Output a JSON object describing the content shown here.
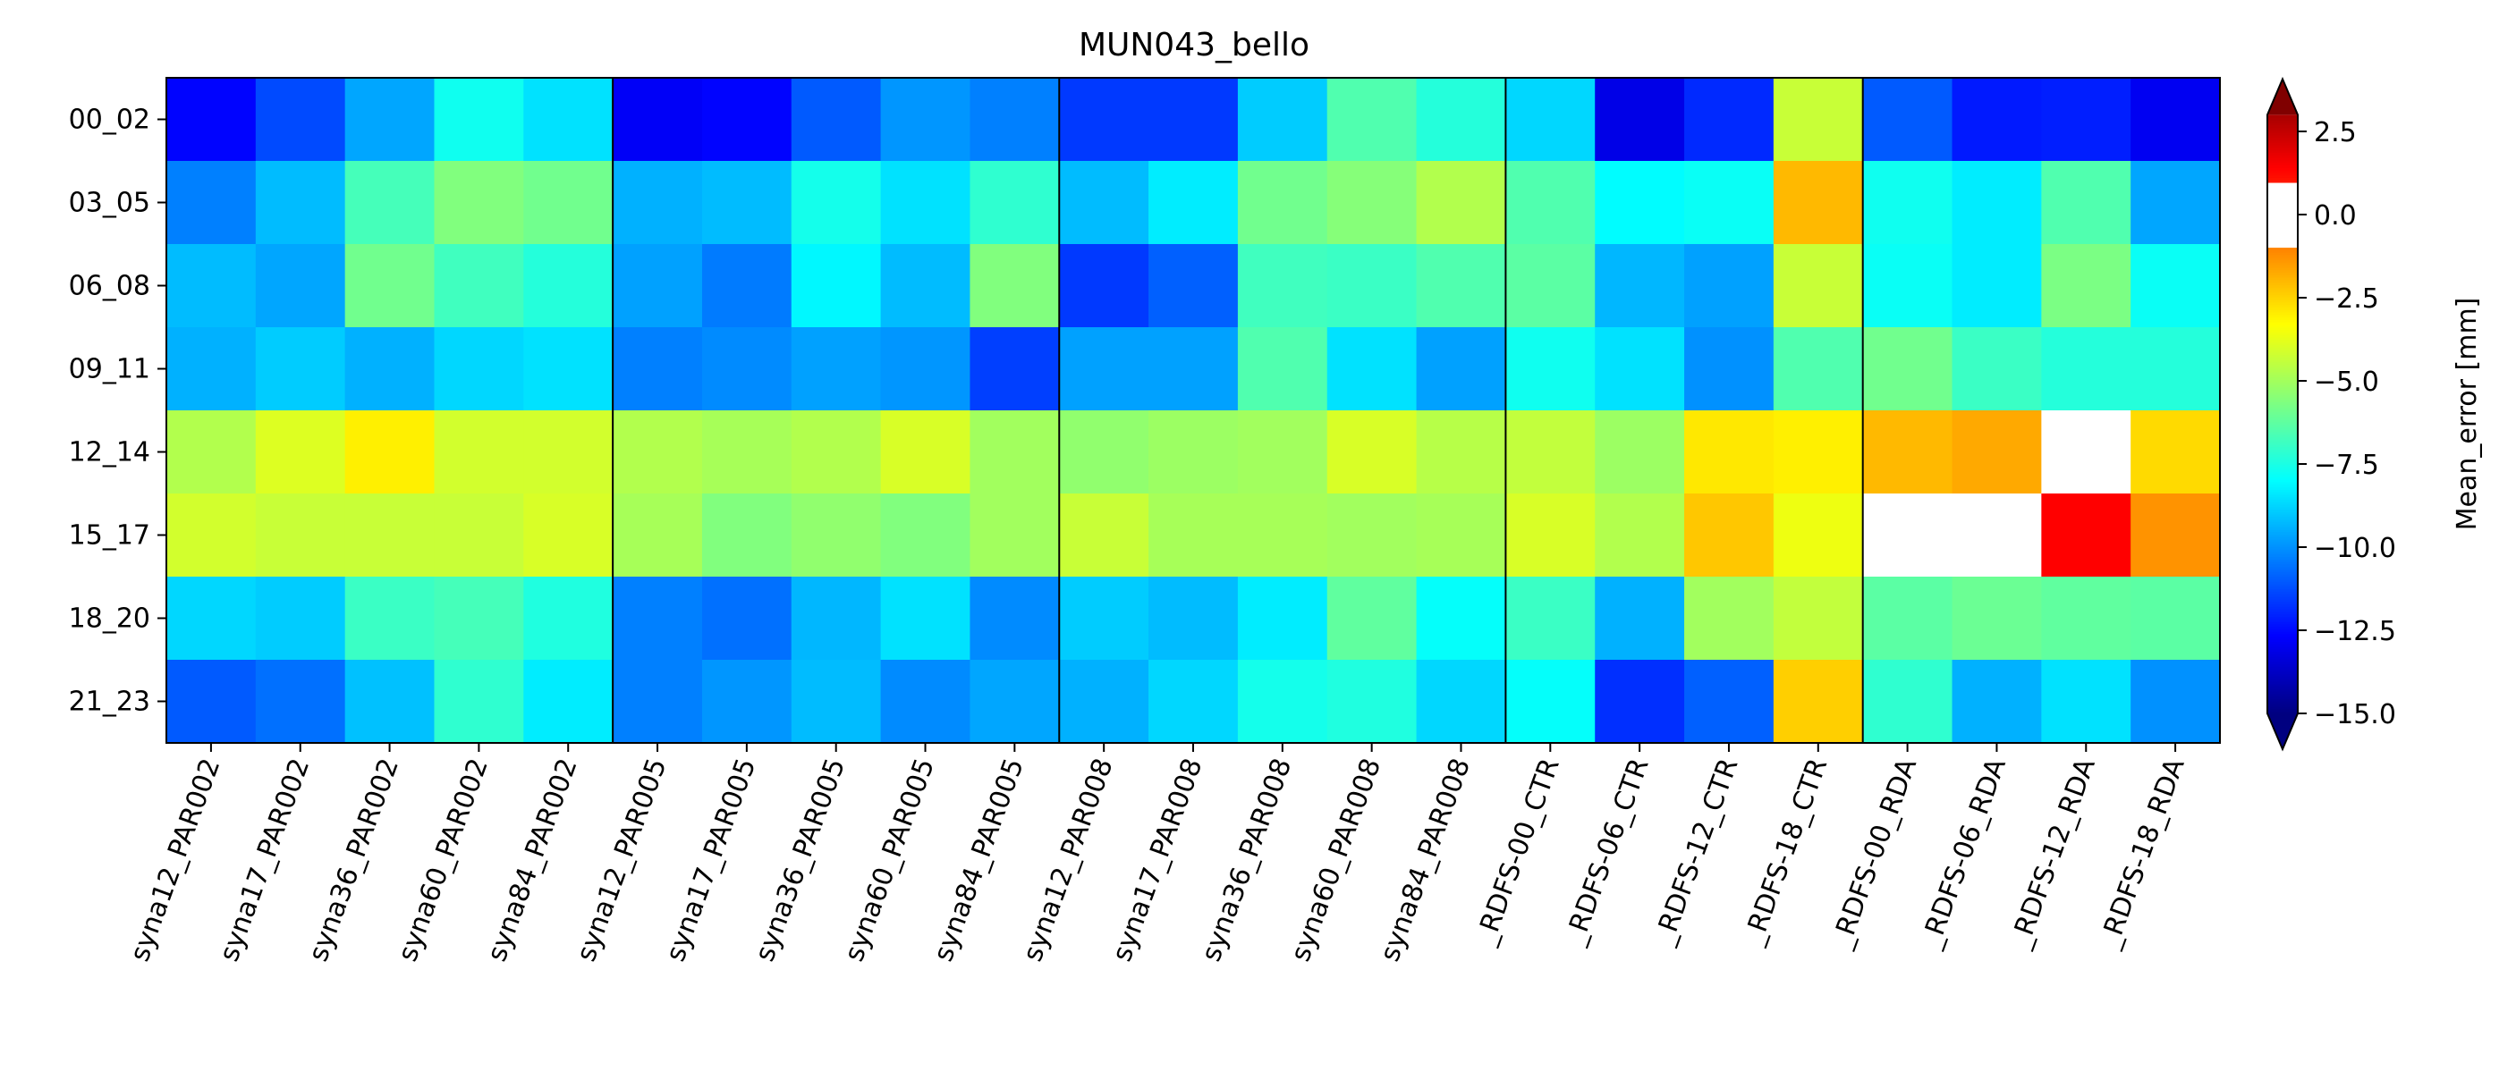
{
  "chart_data": {
    "type": "heatmap",
    "title": "MUN043_bello",
    "xlabel": "",
    "ylabel": "",
    "colorbar": {
      "label": "Mean_error [mm]",
      "range": [
        -15.0,
        3.0
      ],
      "extend": "both",
      "ticks": [
        2.5,
        0.0,
        -2.5,
        -5.0,
        -7.5,
        -10.0,
        -12.5,
        -15.0
      ],
      "tick_labels": [
        "2.5",
        "0.0",
        "−2.5",
        "−5.0",
        "−7.5",
        "−10.0",
        "−12.5",
        "−15.0"
      ],
      "colormap": "jet with white band between -1.0 and 1.0",
      "white_band": [
        -1.0,
        1.0
      ],
      "over_color": "#800000",
      "under_color": "#000080"
    },
    "group_boundaries": [
      5,
      10,
      15,
      19
    ],
    "x_categories": [
      "syna12_PAR002",
      "syna17_PAR002",
      "syna36_PAR002",
      "syna60_PAR002",
      "syna84_PAR002",
      "syna12_PAR005",
      "syna17_PAR005",
      "syna36_PAR005",
      "syna60_PAR005",
      "syna84_PAR005",
      "syna12_PAR008",
      "syna17_PAR008",
      "syna36_PAR008",
      "syna60_PAR008",
      "syna84_PAR008",
      "_RDFS-00_CTR",
      "_RDFS-06_CTR",
      "_RDFS-12_CTR",
      "_RDFS-18_CTR",
      "_RDFS-00_RDA",
      "_RDFS-06_RDA",
      "_RDFS-12_RDA",
      "_RDFS-18_RDA"
    ],
    "y_categories": [
      "00_02",
      "03_05",
      "06_08",
      "09_11",
      "12_14",
      "15_17",
      "18_20",
      "21_23"
    ],
    "values": [
      [
        -12.6,
        -11.3,
        -9.6,
        -7.7,
        -8.5,
        -12.8,
        -12.6,
        -11.0,
        -9.9,
        -10.3,
        -11.6,
        -11.6,
        -8.9,
        -6.5,
        -7.3,
        -8.7,
        -13.1,
        -11.9,
        -4.3,
        -11.0,
        -12.2,
        -12.1,
        -12.9
      ],
      [
        -10.3,
        -9.2,
        -6.7,
        -5.6,
        -5.9,
        -9.4,
        -9.2,
        -7.6,
        -8.5,
        -7.1,
        -9.2,
        -8.3,
        -5.9,
        -5.5,
        -4.7,
        -6.5,
        -8.0,
        -7.8,
        -2.0,
        -7.7,
        -8.3,
        -6.5,
        -9.6
      ],
      [
        -9.2,
        -9.6,
        -5.9,
        -6.8,
        -7.3,
        -9.7,
        -10.4,
        -8.1,
        -9.2,
        -5.6,
        -11.6,
        -10.9,
        -6.8,
        -6.9,
        -6.5,
        -6.3,
        -9.3,
        -9.7,
        -4.3,
        -7.8,
        -8.3,
        -5.7,
        -7.8
      ],
      [
        -9.4,
        -8.9,
        -9.4,
        -8.7,
        -8.5,
        -10.3,
        -10.1,
        -9.7,
        -9.9,
        -11.5,
        -9.7,
        -9.7,
        -6.5,
        -8.5,
        -9.7,
        -7.7,
        -8.5,
        -10.0,
        -6.5,
        -5.9,
        -6.9,
        -7.3,
        -7.3
      ],
      [
        -4.7,
        -3.9,
        -3.0,
        -4.1,
        -4.1,
        -4.7,
        -4.9,
        -4.7,
        -4.0,
        -5.0,
        -5.3,
        -5.1,
        -5.0,
        -4.0,
        -4.6,
        -4.4,
        -5.1,
        -2.85,
        -3.0,
        -2.0,
        -1.7,
        0.0,
        -2.6
      ],
      [
        -4.1,
        -4.3,
        -4.3,
        -4.3,
        -4.0,
        -4.9,
        -5.6,
        -5.3,
        -5.6,
        -5.0,
        -4.3,
        -4.9,
        -4.9,
        -5.0,
        -4.9,
        -4.0,
        -4.7,
        -2.25,
        -3.6,
        0.0,
        0.0,
        1.4,
        -1.3
      ],
      [
        -8.7,
        -8.9,
        -6.9,
        -6.7,
        -7.4,
        -10.3,
        -10.6,
        -9.3,
        -8.5,
        -10.1,
        -8.9,
        -9.2,
        -8.3,
        -6.2,
        -7.9,
        -6.9,
        -9.4,
        -5.0,
        -4.4,
        -6.3,
        -6.0,
        -6.2,
        -6.3
      ],
      [
        -11.0,
        -10.6,
        -9.1,
        -7.1,
        -8.3,
        -10.3,
        -9.9,
        -9.2,
        -10.1,
        -9.6,
        -9.4,
        -8.7,
        -7.6,
        -7.4,
        -8.7,
        -7.9,
        -11.8,
        -10.9,
        -2.4,
        -7.1,
        -9.4,
        -8.5,
        -10.0
      ]
    ]
  }
}
